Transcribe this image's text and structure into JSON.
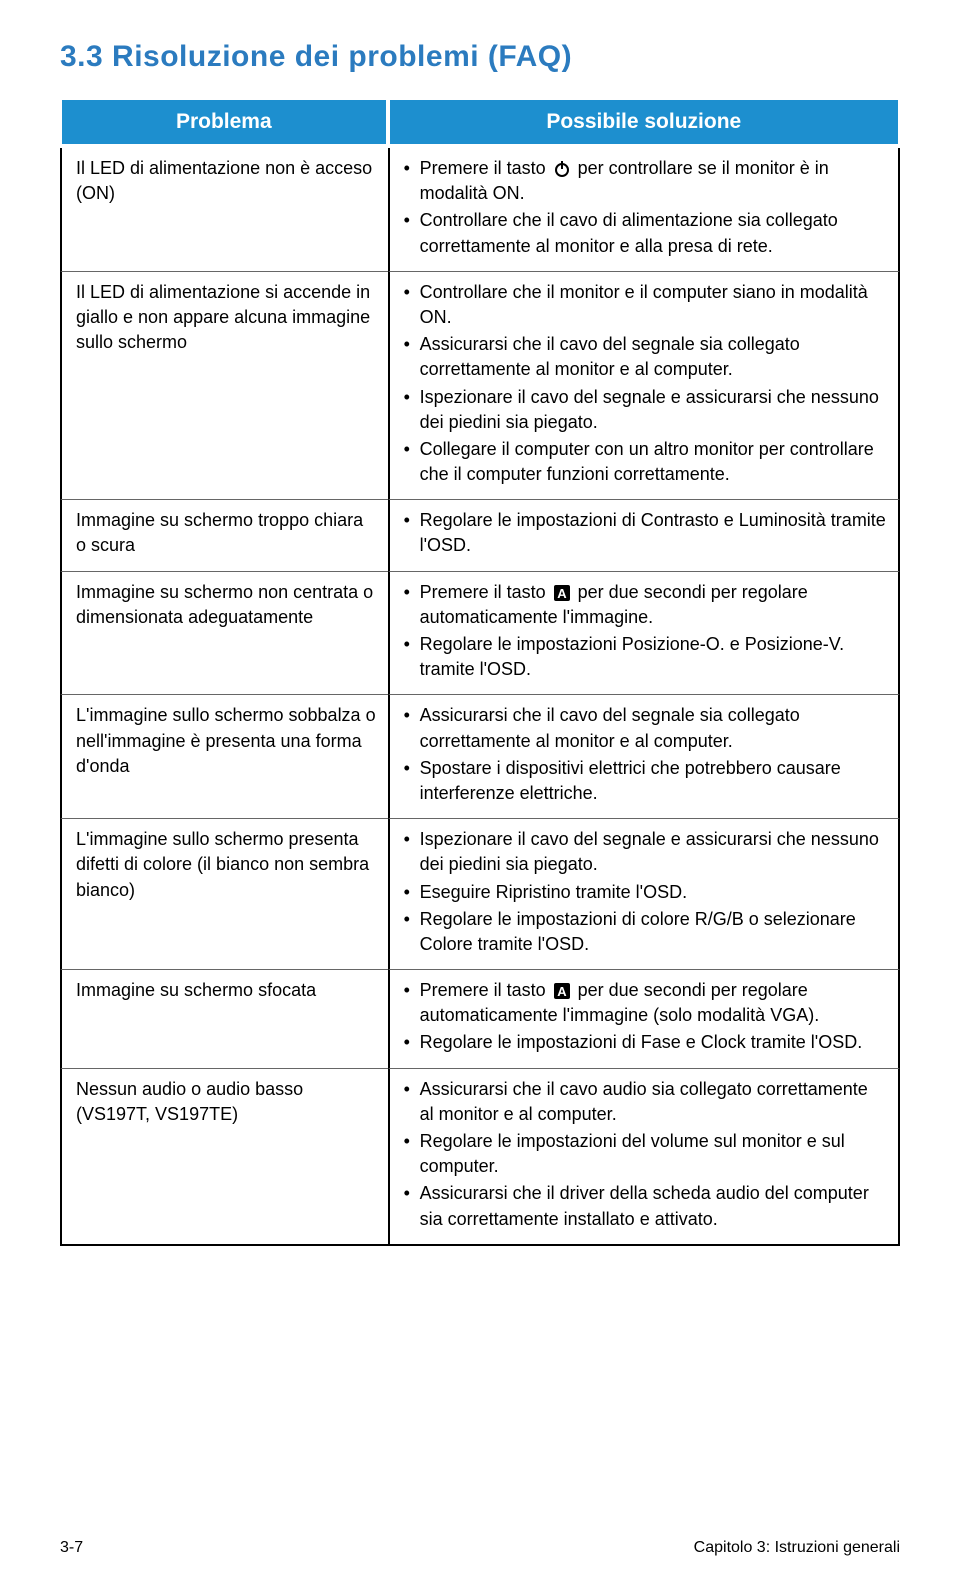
{
  "title": "3.3   Risoluzione dei problemi (FAQ)",
  "headers": {
    "problem": "Problema",
    "solution": "Possibile soluzione"
  },
  "icons": {
    "power": "⏻",
    "auto": "A"
  },
  "rows": [
    {
      "problem": "Il LED di alimentazione non è acceso (ON)",
      "solutions": [
        {
          "pre": "Premere il tasto ",
          "icon": "power",
          "post": " per controllare se il monitor è in modalità ON."
        },
        {
          "pre": "Controllare che il cavo di alimentazione sia collegato correttamente al monitor e alla presa di rete."
        }
      ]
    },
    {
      "problem": "Il LED di alimentazione si accende in giallo e non appare alcuna immagine sullo schermo",
      "solutions": [
        {
          "pre": "Controllare che il monitor e il computer siano in modalità ON."
        },
        {
          "pre": "Assicurarsi che il cavo del segnale sia collegato correttamente al monitor e al computer."
        },
        {
          "pre": "Ispezionare il cavo del segnale e assicurarsi che nessuno dei piedini sia piegato."
        },
        {
          "pre": "Collegare il computer con un altro monitor per controllare che il computer funzioni correttamente."
        }
      ]
    },
    {
      "problem": "Immagine su schermo troppo chiara o scura",
      "solutions": [
        {
          "pre": "Regolare le impostazioni di Contrasto e Luminosità tramite l'OSD."
        }
      ]
    },
    {
      "problem": "Immagine su schermo non centrata o dimensionata adeguatamente",
      "solutions": [
        {
          "pre": "Premere il tasto ",
          "icon": "auto",
          "post": " per due secondi per regolare automaticamente l'immagine."
        },
        {
          "pre": "Regolare le impostazioni Posizione-O. e Posizione-V. tramite l'OSD."
        }
      ]
    },
    {
      "problem": "L'immagine sullo schermo sobbalza o nell'immagine è presenta una forma d'onda",
      "solutions": [
        {
          "pre": "Assicurarsi che il cavo del segnale sia collegato correttamente al monitor e al computer."
        },
        {
          "pre": "Spostare i dispositivi elettrici che potrebbero causare interferenze elettriche."
        }
      ]
    },
    {
      "problem": "L'immagine sullo schermo presenta difetti di colore (il bianco non sembra bianco)",
      "solutions": [
        {
          "pre": "Ispezionare il cavo del segnale e assicurarsi che nessuno dei piedini sia piegato."
        },
        {
          "pre": "Eseguire Ripristino tramite l'OSD."
        },
        {
          "pre": "Regolare le impostazioni di colore R/G/B o selezionare Colore tramite l'OSD."
        }
      ]
    },
    {
      "problem": "Immagine su schermo sfocata",
      "solutions": [
        {
          "pre": "Premere il tasto ",
          "icon": "auto",
          "post": " per due secondi per regolare automaticamente l'immagine (solo modalità VGA)."
        },
        {
          "pre": "Regolare le impostazioni di Fase e Clock tramite l'OSD."
        }
      ]
    },
    {
      "problem": "Nessun audio o audio basso (VS197T, VS197TE)",
      "solutions": [
        {
          "pre": "Assicurarsi che il cavo audio sia collegato correttamente al monitor e al computer."
        },
        {
          "pre": "Regolare le impostazioni del volume sul monitor e sul computer."
        },
        {
          "pre": "Assicurarsi che il driver della scheda audio del computer sia correttamente installato e attivato."
        }
      ]
    }
  ],
  "footer": {
    "left": "3-7",
    "right": "Capitolo 3: Istruzioni generali"
  },
  "colors": {
    "title": "#2b7bbf",
    "header_bg": "#1d8fcf",
    "header_fg": "#ffffff",
    "border": "#000000"
  }
}
